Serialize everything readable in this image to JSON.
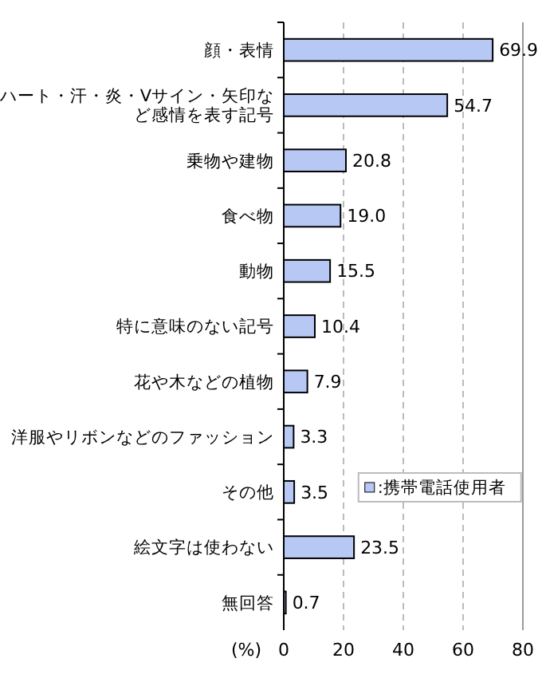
{
  "chart_data": {
    "type": "bar",
    "orientation": "horizontal",
    "xlabel": "(%)",
    "categories": [
      "顔・表情",
      "ハート・汗・炎・Vサイン・矢印など感情を表す記号",
      "乗物や建物",
      "食べ物",
      "動物",
      "特に意味のない記号",
      "花や木などの植物",
      "洋服やリボンなどのファッション",
      "その他",
      "絵文字は使わない",
      "無回答"
    ],
    "series": [
      {
        "name": ":携帯電話使用者",
        "color": "#b8c8f4",
        "values": [
          69.9,
          54.7,
          20.8,
          19.0,
          15.5,
          10.4,
          7.9,
          3.3,
          3.5,
          23.5,
          0.7
        ],
        "value_labels": [
          "69.9",
          "54.7",
          "20.8",
          "19.0",
          "15.5",
          "10.4",
          "7.9",
          "3.3",
          "3.5",
          "23.5",
          "0.7"
        ]
      }
    ],
    "xlim": [
      0,
      80
    ],
    "xticks": [
      0,
      20,
      40,
      60,
      80
    ],
    "grid": "x",
    "legend": "bottom right"
  }
}
